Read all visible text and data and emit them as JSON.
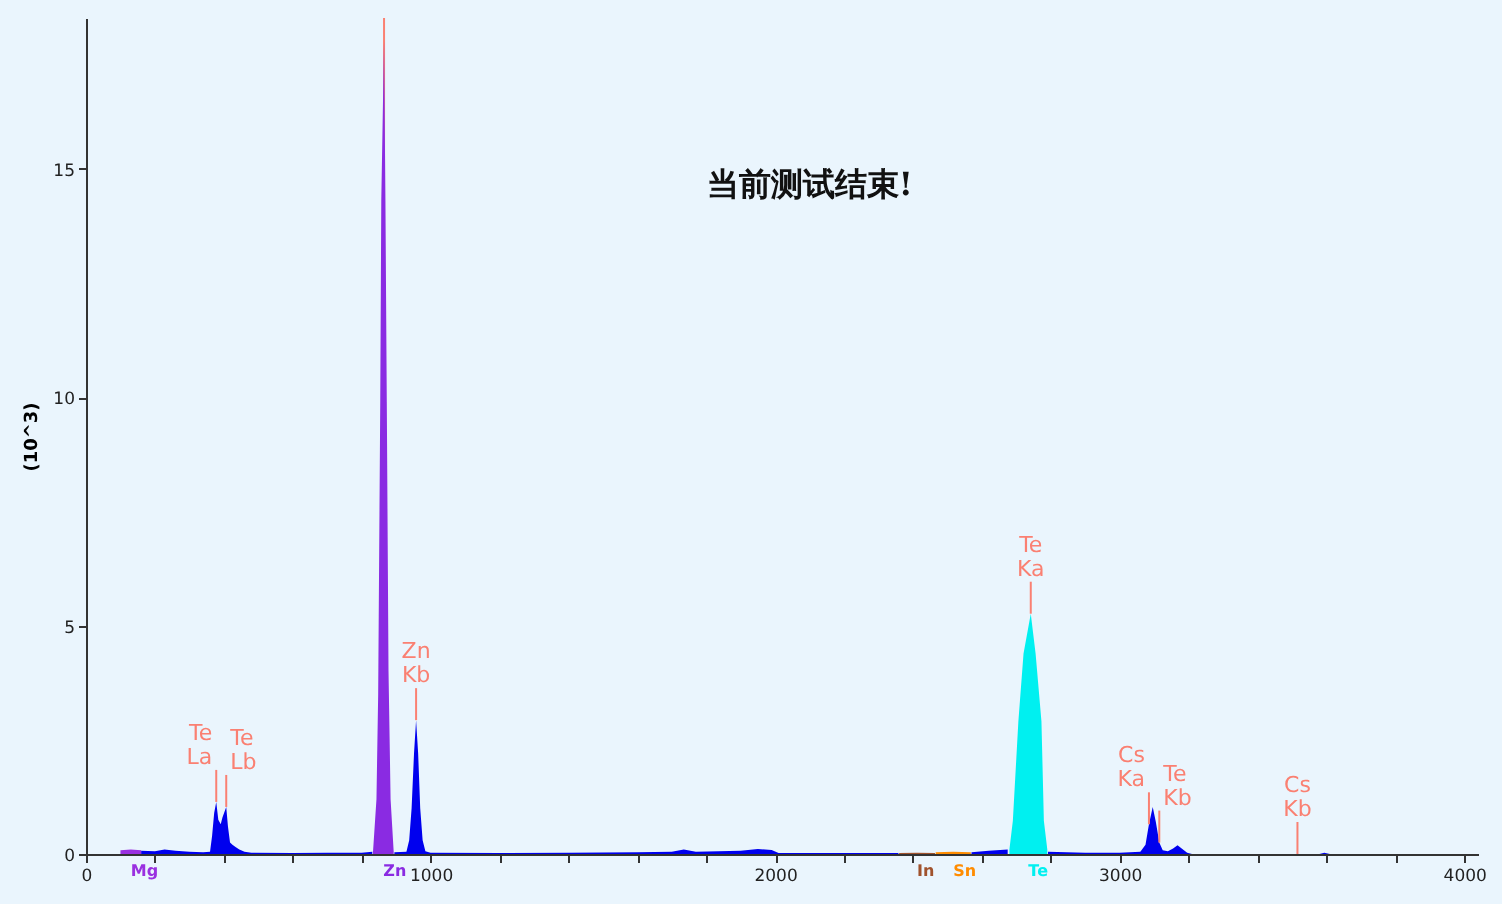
{
  "chart_data": {
    "type": "area",
    "annotations": [
      "当前测试结束!",
      {
        "text": "Te\nLa",
        "x": 378,
        "y": 1.14
      },
      {
        "text": "Te\nLb",
        "x": 407,
        "y": 1.03
      },
      {
        "text": "Zn\nKb",
        "x": 958,
        "y": 2.93
      },
      {
        "text": "Te\nKa",
        "x": 2742,
        "y": 5.26
      },
      {
        "text": "Cs\nKa",
        "x": 3085,
        "y": 0.65
      },
      {
        "text": "Te\nKb",
        "x": 3115,
        "y": 0.25
      },
      {
        "text": "Cs\nKb",
        "x": 3516,
        "y": 0
      }
    ],
    "ylabel": "(10^3)",
    "xlim": [
      0,
      4040
    ],
    "ylim": [
      0,
      18.3
    ],
    "xticks": [
      0,
      {
        "value": 200,
        "label": null
      },
      {
        "value": 400,
        "label": null
      },
      {
        "value": 600,
        "label": null
      },
      {
        "value": 800,
        "label": null
      },
      1000,
      {
        "value": 1200,
        "label": null
      },
      {
        "value": 1400,
        "label": null
      },
      {
        "value": 1600,
        "label": null
      },
      {
        "value": 1800,
        "label": null
      },
      2000,
      {
        "value": 2200,
        "label": null
      },
      {
        "value": 2400,
        "label": null
      },
      {
        "value": 2600,
        "label": null
      },
      {
        "value": 2800,
        "label": null
      },
      3000,
      {
        "value": 3200,
        "label": null
      },
      {
        "value": 3400,
        "label": null
      },
      {
        "value": 3600,
        "label": null
      },
      {
        "value": 3800,
        "label": null
      },
      4000
    ],
    "yticks": [
      0,
      5,
      10,
      15
    ],
    "ref_lines": [
      {
        "axis": "x",
        "value": 865,
        "color": "#fa8072"
      }
    ],
    "series": [
      {
        "color": "#0000ee",
        "x": [
          160,
          200,
          228,
          260,
          300,
          340,
          360,
          366,
          372,
          378,
          384,
          391,
          396,
          407,
          412,
          418,
          425,
          435,
          445,
          460,
          480,
          600,
          700,
          800,
          831,
          860,
          895,
          930,
          938,
          945,
          952,
          958,
          964,
          970,
          977,
          985,
          1000,
          1200,
          1400,
          1600,
          1700,
          1735,
          1770,
          1900,
          1950,
          1990,
          2010,
          2200,
          2358,
          2450,
          2570,
          2620,
          2675,
          2735,
          2792,
          2900,
          3000,
          3060,
          3075,
          3085,
          3096,
          3105,
          3115,
          3125,
          3140,
          3155,
          3168,
          3180,
          3196,
          3210,
          3300,
          3516,
          3580,
          3594,
          3610,
          4000
        ],
        "values": [
          0.07,
          0.06,
          0.1,
          0.07,
          0.05,
          0.04,
          0.05,
          0.4,
          0.9,
          1.14,
          0.75,
          0.65,
          0.8,
          1.03,
          0.6,
          0.25,
          0.2,
          0.15,
          0.1,
          0.05,
          0.03,
          0.02,
          0.03,
          0.03,
          0.05,
          null,
          0.04,
          0.05,
          0.3,
          1.0,
          2.2,
          2.93,
          2.2,
          1.0,
          0.3,
          0.06,
          0.03,
          0.02,
          0.03,
          0.04,
          0.05,
          0.1,
          0.05,
          0.07,
          0.11,
          0.09,
          0.02,
          0.02,
          0.02,
          null,
          0.04,
          0.07,
          0.1,
          null,
          0.05,
          0.03,
          0.03,
          0.05,
          0.2,
          0.65,
          1.03,
          0.7,
          0.25,
          0.08,
          0.06,
          0.12,
          0.19,
          0.12,
          0.03,
          0,
          0,
          0,
          0,
          0.03,
          0,
          0
        ]
      },
      {
        "name": "Mg",
        "color": "#9a30e0",
        "x": [
          100,
          130,
          160
        ],
        "values": [
          0.08,
          0.1,
          0.08
        ]
      },
      {
        "name": "Zn",
        "color": "#8a2be2",
        "x": [
          833,
          843,
          848,
          854,
          857,
          865,
          869,
          873,
          878,
          884,
          893
        ],
        "values": [
          0.05,
          1.2,
          3.5,
          9.9,
          14.3,
          17.8,
          14.3,
          9.9,
          4,
          1.2,
          0.05
        ]
      },
      {
        "name": "In",
        "color": "#a0522d",
        "x": [
          2360,
          2412,
          2464
        ],
        "values": [
          0.02,
          0.03,
          0.02
        ]
      },
      {
        "name": "Sn",
        "color": "#ff8c00",
        "x": [
          2466,
          2517,
          2568
        ],
        "values": [
          0.04,
          0.05,
          0.04
        ]
      },
      {
        "name": "Te",
        "color": "#00f0f0",
        "x": [
          2680,
          2690,
          2706,
          2721,
          2742,
          2756,
          2773,
          2780,
          2790
        ],
        "values": [
          0.1,
          0.73,
          2.9,
          4.39,
          5.26,
          4.39,
          2.9,
          0.73,
          0.1
        ]
      }
    ]
  }
}
